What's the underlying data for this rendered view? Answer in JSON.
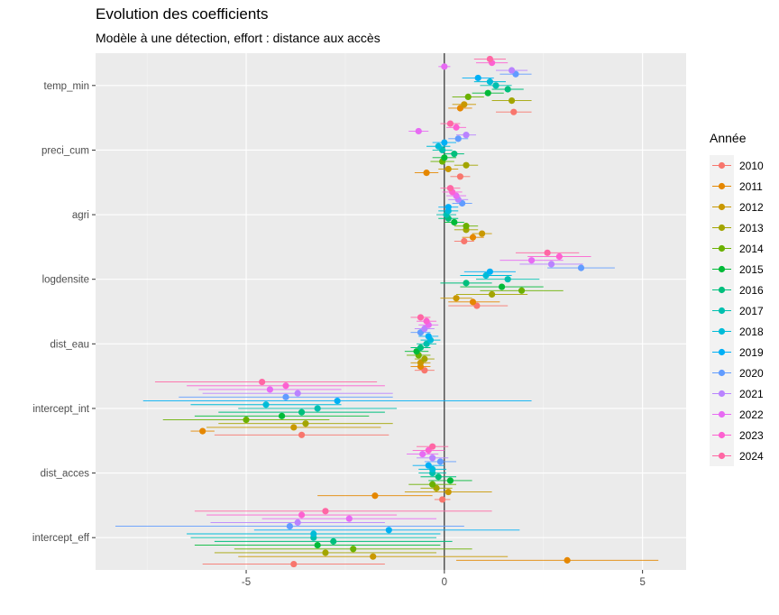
{
  "chart_data": {
    "type": "forest",
    "title": "Evolution des coefficients",
    "subtitle": "Modèle à une détection, effort : distance aux accès",
    "xlabel": "",
    "ylabel": "",
    "xlim": [
      -8.8,
      6.1
    ],
    "x_ticks": [
      -5,
      0,
      5
    ],
    "x_tick_labels": [
      "-5",
      "0",
      "5"
    ],
    "reference_line": 0,
    "grid": true,
    "legend_title": "Année",
    "legend_position": "right",
    "categories": [
      "temp_min",
      "preci_cum",
      "agri",
      "logdensite",
      "dist_eau",
      "intercept_int",
      "dist_acces",
      "intercept_eff"
    ],
    "years": [
      "2010",
      "2011",
      "2012",
      "2013",
      "2014",
      "2015",
      "2016",
      "2017",
      "2018",
      "2019",
      "2020",
      "2021",
      "2022",
      "2023",
      "2024"
    ],
    "colors": [
      "#F8766D",
      "#E58700",
      "#C99800",
      "#A3A500",
      "#6BB100",
      "#00BA38",
      "#00BF7D",
      "#00C0AF",
      "#00BCD8",
      "#00B0F6",
      "#619CFF",
      "#B983FF",
      "#E76BF3",
      "#FD61D1",
      "#FF67A4"
    ],
    "series": [
      {
        "name": "2010",
        "estimates": [
          1.75,
          0.4,
          0.5,
          0.82,
          -0.5,
          -3.6,
          -0.05,
          -3.8
        ],
        "ci_low": [
          1.3,
          0.15,
          0.25,
          0.1,
          -0.75,
          -5.8,
          -0.25,
          -6.1
        ],
        "ci_high": [
          2.2,
          0.65,
          0.75,
          1.6,
          -0.25,
          -1.4,
          0.15,
          -1.5
        ]
      },
      {
        "name": "2011",
        "estimates": [
          0.4,
          -0.45,
          0.72,
          0.72,
          -0.6,
          -6.1,
          -1.75,
          3.1
        ],
        "ci_low": [
          0.1,
          -0.75,
          0.45,
          0.1,
          -0.85,
          -6.4,
          -3.2,
          0.3
        ],
        "ci_high": [
          0.7,
          -0.15,
          1.0,
          1.4,
          -0.35,
          -5.8,
          -0.3,
          5.4
        ]
      },
      {
        "name": "2012",
        "estimates": [
          0.5,
          0.1,
          0.95,
          0.3,
          -0.6,
          -3.8,
          0.1,
          -1.8
        ],
        "ci_low": [
          0.2,
          -0.15,
          0.7,
          -0.1,
          -0.85,
          -6.0,
          -1.0,
          -5.2
        ],
        "ci_high": [
          0.8,
          0.35,
          1.2,
          0.7,
          -0.35,
          -1.6,
          1.2,
          1.6
        ]
      },
      {
        "name": "2013",
        "estimates": [
          1.7,
          0.55,
          0.55,
          1.2,
          -0.5,
          -3.5,
          -0.2,
          -3.0
        ],
        "ci_low": [
          1.2,
          0.25,
          0.25,
          0.3,
          -0.75,
          -5.7,
          -0.6,
          -5.8
        ],
        "ci_high": [
          2.2,
          0.85,
          0.85,
          2.1,
          -0.25,
          -1.3,
          0.2,
          -0.2
        ]
      },
      {
        "name": "2014",
        "estimates": [
          0.6,
          -0.05,
          0.55,
          1.95,
          -0.65,
          -5.0,
          -0.3,
          -2.3
        ],
        "ci_low": [
          0.2,
          -0.35,
          0.25,
          0.9,
          -0.95,
          -7.1,
          -0.9,
          -5.3
        ],
        "ci_high": [
          1.0,
          0.25,
          0.85,
          3.0,
          -0.35,
          -2.9,
          0.3,
          0.7
        ]
      },
      {
        "name": "2015",
        "estimates": [
          1.1,
          0.0,
          0.25,
          1.45,
          -0.7,
          -4.1,
          0.15,
          -3.2
        ],
        "ci_low": [
          0.7,
          -0.3,
          0.0,
          0.4,
          -1.0,
          -6.3,
          -0.4,
          -6.3
        ],
        "ci_high": [
          1.5,
          0.3,
          0.5,
          2.5,
          -0.4,
          -1.9,
          0.7,
          -0.1
        ]
      },
      {
        "name": "2016",
        "estimates": [
          1.6,
          0.25,
          0.1,
          0.55,
          -0.6,
          -3.6,
          -0.15,
          -2.8
        ],
        "ci_low": [
          1.2,
          0.0,
          -0.15,
          -0.1,
          -0.85,
          -5.7,
          -0.6,
          -5.8
        ],
        "ci_high": [
          2.0,
          0.5,
          0.35,
          1.2,
          -0.35,
          -1.5,
          0.3,
          0.2
        ]
      },
      {
        "name": "2017",
        "estimates": [
          1.3,
          -0.05,
          0.05,
          1.6,
          -0.45,
          -3.2,
          -0.3,
          -3.3
        ],
        "ci_low": [
          0.9,
          -0.3,
          -0.2,
          0.8,
          -0.7,
          -5.2,
          -0.65,
          -6.4
        ],
        "ci_high": [
          1.7,
          0.2,
          0.3,
          2.4,
          -0.2,
          -1.2,
          0.05,
          -0.2
        ]
      },
      {
        "name": "2018",
        "estimates": [
          1.15,
          -0.15,
          0.1,
          1.05,
          -0.35,
          -4.5,
          -0.3,
          -3.3
        ],
        "ci_low": [
          0.75,
          -0.45,
          -0.15,
          0.4,
          -0.6,
          -6.4,
          -0.65,
          -6.5
        ],
        "ci_high": [
          1.55,
          0.15,
          0.35,
          1.7,
          -0.1,
          -2.6,
          0.05,
          -0.1
        ]
      },
      {
        "name": "2019",
        "estimates": [
          0.85,
          0.0,
          0.1,
          1.15,
          -0.4,
          -2.7,
          -0.4,
          -1.4
        ],
        "ci_low": [
          0.45,
          -0.3,
          -0.15,
          0.5,
          -0.65,
          -7.6,
          -0.8,
          -4.8
        ],
        "ci_high": [
          1.25,
          0.3,
          0.35,
          1.8,
          -0.15,
          2.2,
          0.0,
          1.9
        ]
      },
      {
        "name": "2020",
        "estimates": [
          1.8,
          0.35,
          0.45,
          3.45,
          -0.6,
          -4.0,
          -0.1,
          -3.9
        ],
        "ci_low": [
          1.4,
          0.1,
          0.2,
          2.6,
          -0.85,
          -6.7,
          -0.5,
          -8.3
        ],
        "ci_high": [
          2.2,
          0.6,
          0.7,
          4.3,
          -0.35,
          -1.3,
          0.3,
          0.5
        ]
      },
      {
        "name": "2021",
        "estimates": [
          1.7,
          0.55,
          0.35,
          2.7,
          -0.5,
          -3.7,
          -0.3,
          -3.7
        ],
        "ci_low": [
          1.3,
          0.3,
          0.1,
          1.9,
          -0.75,
          -6.1,
          -0.7,
          -5.9
        ],
        "ci_high": [
          2.1,
          0.8,
          0.6,
          3.5,
          -0.25,
          -1.3,
          0.1,
          -1.5
        ]
      },
      {
        "name": "2022",
        "estimates": [
          0.0,
          -0.65,
          0.3,
          2.2,
          -0.4,
          -4.4,
          -0.55,
          -2.4
        ],
        "ci_low": [
          -0.15,
          -0.9,
          0.05,
          1.4,
          -0.65,
          -6.2,
          -0.95,
          -4.6
        ],
        "ci_high": [
          0.15,
          -0.4,
          0.55,
          3.0,
          -0.15,
          -2.6,
          -0.15,
          -0.2
        ]
      },
      {
        "name": "2023",
        "estimates": [
          1.2,
          0.3,
          0.2,
          2.9,
          -0.45,
          -4.0,
          -0.4,
          -3.6
        ],
        "ci_low": [
          0.8,
          0.05,
          -0.05,
          2.1,
          -0.7,
          -6.5,
          -0.8,
          -6.0
        ],
        "ci_high": [
          1.6,
          0.55,
          0.45,
          3.7,
          -0.2,
          -1.5,
          0.0,
          -1.2
        ]
      },
      {
        "name": "2024",
        "estimates": [
          1.15,
          0.15,
          0.15,
          2.6,
          -0.6,
          -4.6,
          -0.3,
          -3.0
        ],
        "ci_low": [
          0.75,
          -0.1,
          -0.1,
          1.8,
          -0.85,
          -7.3,
          -0.7,
          -6.3
        ],
        "ci_high": [
          1.55,
          0.4,
          0.4,
          3.4,
          -0.35,
          -1.7,
          0.1,
          1.2
        ]
      }
    ]
  }
}
